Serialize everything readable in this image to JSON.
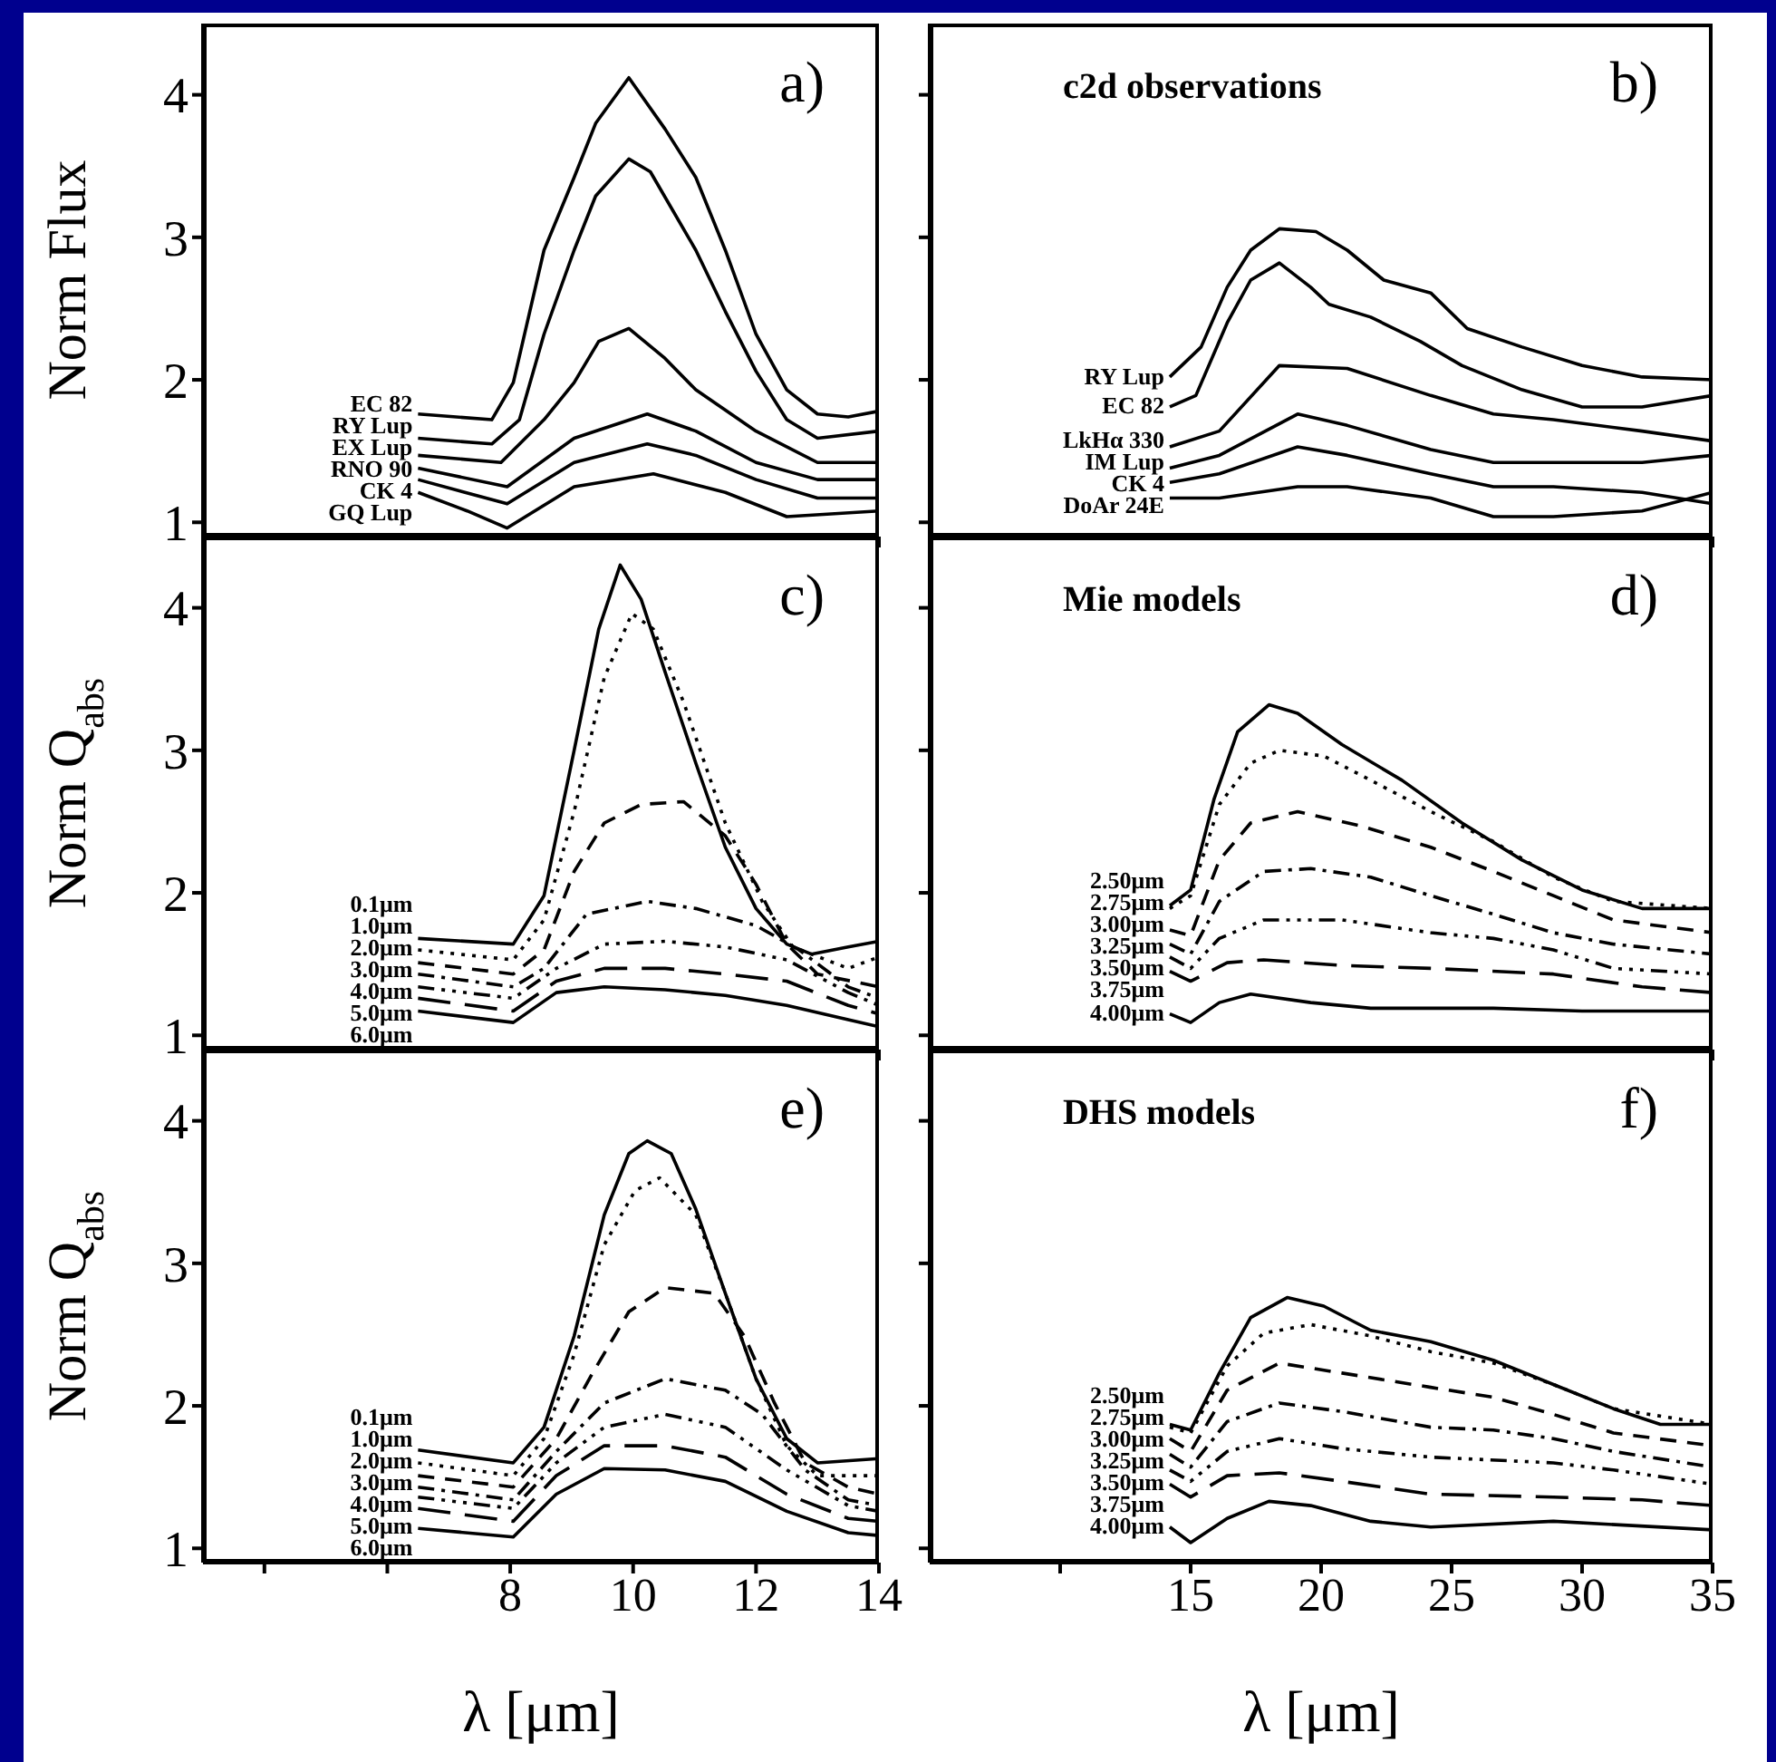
{
  "chart_data": [
    {
      "type": "line",
      "ylabel": "Norm Flux",
      "annotations": [
        "a)"
      ],
      "xlim": [
        3,
        14
      ],
      "xticks": [
        {
          "value": 4,
          "label": null
        },
        {
          "value": 6,
          "label": null
        },
        8,
        10,
        12,
        14
      ],
      "ylim": [
        0.9,
        4.5
      ],
      "yticks": [
        1,
        2,
        3,
        4
      ],
      "tick_labels": "y",
      "series": [
        {
          "name": "EC 82",
          "color": "#000000",
          "line_style": "solid",
          "x": [
            6.5,
            7.7,
            8.05,
            8.55,
            9.04,
            9.39,
            9.93,
            10.52,
            11.02,
            11.5,
            12.0,
            12.5,
            13.0,
            13.5,
            14
          ],
          "values": [
            1.76,
            1.72,
            1.98,
            2.91,
            3.42,
            3.8,
            4.12,
            3.76,
            3.42,
            2.91,
            2.32,
            1.93,
            1.76,
            1.74,
            1.78
          ]
        },
        {
          "name": "RY Lup",
          "color": "#000000",
          "line_style": "solid",
          "x": [
            6.5,
            7.7,
            8.15,
            8.55,
            9.04,
            9.39,
            9.93,
            10.28,
            11.02,
            11.5,
            12.0,
            12.5,
            13,
            14
          ],
          "values": [
            1.59,
            1.55,
            1.72,
            2.32,
            2.91,
            3.29,
            3.55,
            3.46,
            2.91,
            2.48,
            2.06,
            1.72,
            1.59,
            1.64
          ]
        },
        {
          "name": "EX Lup",
          "color": "#000000",
          "line_style": "solid",
          "x": [
            6.5,
            7.85,
            8.55,
            9.04,
            9.44,
            9.93,
            10.52,
            11.02,
            12,
            13,
            14
          ],
          "values": [
            1.47,
            1.42,
            1.72,
            1.98,
            2.27,
            2.36,
            2.15,
            1.93,
            1.64,
            1.42,
            1.42
          ]
        },
        {
          "name": "RNO 90",
          "color": "#000000",
          "line_style": "solid",
          "x": [
            6.5,
            7.95,
            9.04,
            10.23,
            11.02,
            12,
            13,
            14
          ],
          "values": [
            1.38,
            1.25,
            1.59,
            1.76,
            1.64,
            1.42,
            1.3,
            1.3
          ]
        },
        {
          "name": "CK 4",
          "color": "#000000",
          "line_style": "solid",
          "x": [
            6.5,
            7.95,
            9.04,
            10.23,
            11.02,
            12,
            13,
            14
          ],
          "values": [
            1.3,
            1.13,
            1.42,
            1.55,
            1.47,
            1.3,
            1.17,
            1.17
          ]
        },
        {
          "name": "GQ Lup",
          "color": "#000000",
          "line_style": "solid",
          "x": [
            6.5,
            7.3,
            7.95,
            9.04,
            10.33,
            11.5,
            12.5,
            14
          ],
          "values": [
            1.21,
            1.08,
            0.96,
            1.25,
            1.34,
            1.21,
            1.04,
            1.08
          ]
        }
      ]
    },
    {
      "type": "line",
      "annotations": [
        "c2d observations",
        "b)"
      ],
      "xlim": [
        5,
        35
      ],
      "xticks": [
        {
          "value": 10,
          "label": null
        },
        15,
        20,
        25,
        30,
        35
      ],
      "ylim": [
        0.9,
        4.5
      ],
      "yticks": [
        1,
        2,
        3,
        4
      ],
      "tick_labels": false,
      "series": [
        {
          "name": "RY Lup",
          "color": "#000000",
          "line_style": "solid",
          "x": [
            14.2,
            15.4,
            16.4,
            17.3,
            18.4,
            19.8,
            21.0,
            22.4,
            24.2,
            25.6,
            27.7,
            30.0,
            32.3,
            35
          ],
          "values": [
            2.02,
            2.23,
            2.65,
            2.91,
            3.06,
            3.04,
            2.91,
            2.7,
            2.61,
            2.36,
            2.23,
            2.1,
            2.02,
            2.0
          ]
        },
        {
          "name": "EC 82",
          "color": "#000000",
          "line_style": "solid",
          "x": [
            14.2,
            15.2,
            16.4,
            17.3,
            18.4,
            19.6,
            20.3,
            21.9,
            23.8,
            25.4,
            27.7,
            30.0,
            32.3,
            35
          ],
          "values": [
            1.81,
            1.89,
            2.4,
            2.7,
            2.82,
            2.65,
            2.53,
            2.44,
            2.27,
            2.1,
            1.93,
            1.81,
            1.81,
            1.89
          ]
        },
        {
          "name": "LkHα 330",
          "color": "#000000",
          "line_style": "solid",
          "x": [
            14.2,
            16.1,
            18.4,
            21.0,
            24.2,
            26.6,
            28.9,
            32.3,
            35
          ],
          "values": [
            1.53,
            1.64,
            2.1,
            2.08,
            1.89,
            1.76,
            1.72,
            1.64,
            1.57
          ]
        },
        {
          "name": "IM Lup",
          "color": "#000000",
          "line_style": "solid",
          "x": [
            14.2,
            16.1,
            19.1,
            21.0,
            24.2,
            26.6,
            28.9,
            32.3,
            35
          ],
          "values": [
            1.38,
            1.47,
            1.76,
            1.68,
            1.51,
            1.42,
            1.42,
            1.42,
            1.47
          ]
        },
        {
          "name": "CK 4",
          "color": "#000000",
          "line_style": "solid",
          "x": [
            14.2,
            16.1,
            19.1,
            21.0,
            24.2,
            26.6,
            28.9,
            32.3,
            35
          ],
          "values": [
            1.28,
            1.34,
            1.53,
            1.47,
            1.34,
            1.25,
            1.25,
            1.21,
            1.13
          ]
        },
        {
          "name": "DoAr 24E",
          "color": "#000000",
          "line_style": "solid",
          "x": [
            14.2,
            16.1,
            19.1,
            21.0,
            24.2,
            26.6,
            28.9,
            32.3,
            35
          ],
          "values": [
            1.17,
            1.17,
            1.25,
            1.25,
            1.17,
            1.04,
            1.04,
            1.08,
            1.21
          ]
        }
      ]
    },
    {
      "type": "line",
      "ylabel": "Norm Q$_{abs}$",
      "annotations": [
        "c)"
      ],
      "xlim": [
        3,
        14
      ],
      "xticks": [
        {
          "value": 4,
          "label": null
        },
        {
          "value": 6,
          "label": null
        },
        8,
        10,
        12,
        14
      ],
      "ylim": [
        0.9,
        4.5
      ],
      "yticks": [
        1,
        2,
        3,
        4
      ],
      "tick_labels": "y",
      "series": [
        {
          "name": "0.1μm",
          "color": "#000000",
          "line_style": "solid",
          "x": [
            6.5,
            8.05,
            8.55,
            9.04,
            9.44,
            9.79,
            10.13,
            10.52,
            11.02,
            11.5,
            12,
            12.5,
            12.9,
            13.5,
            14
          ],
          "values": [
            1.68,
            1.64,
            1.98,
            3.0,
            3.85,
            4.3,
            4.06,
            3.55,
            2.91,
            2.32,
            1.89,
            1.64,
            1.57,
            1.62,
            1.66
          ]
        },
        {
          "name": "1.0μm",
          "color": "#000000",
          "line_style": "dotted",
          "x": [
            6.5,
            8.05,
            8.55,
            9.04,
            9.53,
            9.98,
            10.33,
            10.82,
            11.5,
            12.1,
            12.6,
            13.5,
            14
          ],
          "values": [
            1.6,
            1.53,
            1.81,
            2.57,
            3.51,
            3.96,
            3.85,
            3.34,
            2.49,
            1.94,
            1.62,
            1.47,
            1.55
          ]
        },
        {
          "name": "2.0μm",
          "color": "#000000",
          "line_style": "dashed",
          "x": [
            6.5,
            8.05,
            8.55,
            9.04,
            9.53,
            10.13,
            10.82,
            11.5,
            12,
            12.5,
            13,
            14
          ],
          "values": [
            1.51,
            1.43,
            1.6,
            2.15,
            2.49,
            2.62,
            2.64,
            2.4,
            2.06,
            1.64,
            1.43,
            1.34
          ]
        },
        {
          "name": "3.0μm",
          "color": "#000000",
          "line_style": "dashdot",
          "x": [
            6.5,
            8.05,
            8.55,
            9.24,
            10.23,
            11.02,
            12,
            12.7,
            13.5,
            14
          ],
          "values": [
            1.43,
            1.34,
            1.47,
            1.85,
            1.94,
            1.89,
            1.77,
            1.6,
            1.34,
            1.26
          ]
        },
        {
          "name": "4.0μm",
          "color": "#000000",
          "line_style": "dashdotdot",
          "x": [
            6.5,
            8.05,
            8.75,
            9.53,
            10.52,
            11.5,
            12.5,
            13.5,
            14
          ],
          "values": [
            1.34,
            1.26,
            1.47,
            1.64,
            1.66,
            1.62,
            1.53,
            1.3,
            1.21
          ]
        },
        {
          "name": "5.0μm",
          "color": "#000000",
          "line_style": "longdash",
          "x": [
            6.5,
            8.05,
            8.75,
            9.53,
            10.52,
            11.5,
            12.5,
            13.5,
            14
          ],
          "values": [
            1.26,
            1.17,
            1.38,
            1.47,
            1.47,
            1.43,
            1.38,
            1.21,
            1.15
          ]
        },
        {
          "name": "6.0μm",
          "color": "#000000",
          "line_style": "solid",
          "x": [
            6.5,
            8.05,
            8.75,
            9.53,
            10.52,
            11.5,
            12.5,
            13.5,
            14
          ],
          "values": [
            1.17,
            1.09,
            1.3,
            1.34,
            1.32,
            1.28,
            1.21,
            1.11,
            1.06
          ]
        }
      ]
    },
    {
      "type": "line",
      "annotations": [
        "Mie models",
        "d)"
      ],
      "xlim": [
        5,
        35
      ],
      "xticks": [
        {
          "value": 10,
          "label": null
        },
        15,
        20,
        25,
        30,
        35
      ],
      "ylim": [
        0.9,
        4.5
      ],
      "yticks": [
        1,
        2,
        3,
        4
      ],
      "tick_labels": false,
      "series": [
        {
          "name": "2.50μm",
          "color": "#000000",
          "line_style": "solid",
          "x": [
            14.2,
            15,
            15.9,
            16.8,
            18.0,
            19.1,
            20.8,
            23.1,
            25.4,
            27.7,
            30.0,
            32.3,
            35
          ],
          "values": [
            1.91,
            2.02,
            2.66,
            3.13,
            3.32,
            3.26,
            3.04,
            2.79,
            2.49,
            2.23,
            2.02,
            1.89,
            1.89
          ]
        },
        {
          "name": "2.75μm",
          "color": "#000000",
          "line_style": "dotted",
          "x": [
            14.2,
            15,
            16.1,
            17.3,
            18.4,
            20.1,
            21.9,
            24.2,
            26.6,
            28.9,
            31.2,
            35
          ],
          "values": [
            1.89,
            1.98,
            2.62,
            2.91,
            3.0,
            2.96,
            2.79,
            2.57,
            2.36,
            2.11,
            1.94,
            1.89
          ]
        },
        {
          "name": "3.00μm",
          "color": "#000000",
          "line_style": "dashed",
          "x": [
            14.2,
            15,
            16.1,
            17.3,
            19.1,
            21.5,
            24.2,
            26.6,
            28.9,
            31.2,
            35
          ],
          "values": [
            1.74,
            1.7,
            2.23,
            2.49,
            2.57,
            2.47,
            2.32,
            2.15,
            1.98,
            1.81,
            1.72
          ]
        },
        {
          "name": "3.25μm",
          "color": "#000000",
          "line_style": "dashdot",
          "x": [
            14.2,
            15,
            16.1,
            17.8,
            19.6,
            21.9,
            24.2,
            26.6,
            28.9,
            31.2,
            35
          ],
          "values": [
            1.64,
            1.57,
            1.94,
            2.15,
            2.17,
            2.11,
            1.98,
            1.85,
            1.72,
            1.64,
            1.57
          ]
        },
        {
          "name": "3.50μm",
          "color": "#000000",
          "line_style": "dashdotdot",
          "x": [
            14.2,
            15,
            16.1,
            17.8,
            20.8,
            24.2,
            26.6,
            28.9,
            31.2,
            35
          ],
          "values": [
            1.55,
            1.47,
            1.68,
            1.81,
            1.81,
            1.72,
            1.68,
            1.6,
            1.47,
            1.43
          ]
        },
        {
          "name": "3.75μm",
          "color": "#000000",
          "line_style": "longdash",
          "x": [
            14.2,
            15,
            16.4,
            17.8,
            20.8,
            24.2,
            28.9,
            32.3,
            35
          ],
          "values": [
            1.45,
            1.38,
            1.51,
            1.53,
            1.49,
            1.47,
            1.43,
            1.34,
            1.3
          ]
        },
        {
          "name": "4.00μm",
          "color": "#000000",
          "line_style": "solid",
          "x": [
            14.2,
            15,
            16.1,
            17.3,
            19.6,
            21.9,
            26.6,
            30,
            35
          ],
          "values": [
            1.15,
            1.09,
            1.23,
            1.29,
            1.23,
            1.19,
            1.19,
            1.17,
            1.17
          ]
        }
      ]
    },
    {
      "type": "line",
      "ylabel": "Norm Q$_{abs}$",
      "xlabel": "λ [μm]",
      "annotations": [
        "e)"
      ],
      "xlim": [
        3,
        14
      ],
      "xticks": [
        {
          "value": 4,
          "label": null
        },
        {
          "value": 6,
          "label": null
        },
        8,
        10,
        12,
        14
      ],
      "ylim": [
        0.9,
        4.5
      ],
      "yticks": [
        1,
        2,
        3,
        4
      ],
      "series": [
        {
          "name": "0.1μm",
          "color": "#000000",
          "line_style": "solid",
          "x": [
            6.5,
            8.05,
            8.55,
            9.04,
            9.53,
            9.93,
            10.23,
            10.62,
            11.02,
            11.5,
            12,
            12.5,
            13,
            14
          ],
          "values": [
            1.69,
            1.6,
            1.85,
            2.49,
            3.34,
            3.77,
            3.86,
            3.77,
            3.38,
            2.79,
            2.19,
            1.77,
            1.6,
            1.63
          ]
        },
        {
          "name": "1.0μm",
          "color": "#000000",
          "line_style": "dotted",
          "x": [
            6.5,
            8.05,
            8.55,
            9.04,
            9.53,
            10.03,
            10.43,
            11.02,
            11.5,
            12,
            12.5,
            13,
            14
          ],
          "values": [
            1.6,
            1.51,
            1.77,
            2.36,
            3.13,
            3.51,
            3.6,
            3.34,
            2.79,
            2.19,
            1.72,
            1.51,
            1.51
          ]
        },
        {
          "name": "2.0μm",
          "color": "#000000",
          "line_style": "dashed",
          "x": [
            6.5,
            8.05,
            8.75,
            9.34,
            9.93,
            10.52,
            11.32,
            11.81,
            12.3,
            12.8,
            13.5,
            14
          ],
          "values": [
            1.51,
            1.43,
            1.77,
            2.23,
            2.66,
            2.83,
            2.79,
            2.49,
            2.02,
            1.6,
            1.43,
            1.38
          ]
        },
        {
          "name": "3.0μm",
          "color": "#000000",
          "line_style": "dashdot",
          "x": [
            6.5,
            8.05,
            8.75,
            9.53,
            10.52,
            11.5,
            12.1,
            12.8,
            13.5,
            14
          ],
          "values": [
            1.43,
            1.34,
            1.68,
            2.02,
            2.19,
            2.11,
            1.94,
            1.55,
            1.34,
            1.3
          ]
        },
        {
          "name": "4.0μm",
          "color": "#000000",
          "line_style": "dashdotdot",
          "x": [
            6.5,
            8.05,
            8.75,
            9.53,
            10.52,
            11.5,
            12.5,
            13.5,
            14
          ],
          "values": [
            1.36,
            1.28,
            1.6,
            1.85,
            1.94,
            1.85,
            1.55,
            1.3,
            1.26
          ]
        },
        {
          "name": "5.0μm",
          "color": "#000000",
          "line_style": "longdash",
          "x": [
            6.5,
            8.05,
            8.75,
            9.53,
            10.52,
            11.5,
            12.5,
            13.5,
            14
          ],
          "values": [
            1.28,
            1.19,
            1.51,
            1.72,
            1.72,
            1.64,
            1.38,
            1.21,
            1.19
          ]
        },
        {
          "name": "6.0μm",
          "color": "#000000",
          "line_style": "solid",
          "x": [
            6.5,
            8.05,
            8.75,
            9.53,
            10.52,
            11.5,
            12.5,
            13.5,
            14
          ],
          "values": [
            1.14,
            1.08,
            1.38,
            1.56,
            1.55,
            1.47,
            1.26,
            1.11,
            1.09
          ]
        }
      ]
    },
    {
      "type": "line",
      "xlabel": "λ [μm]",
      "annotations": [
        "DHS models",
        "f)"
      ],
      "xlim": [
        5,
        35
      ],
      "xticks": [
        {
          "value": 10,
          "label": null
        },
        15,
        20,
        25,
        30,
        35
      ],
      "ylim": [
        0.9,
        4.5
      ],
      "yticks": [
        1,
        2,
        3,
        4
      ],
      "tick_labels": "x",
      "series": [
        {
          "name": "2.50μm",
          "color": "#000000",
          "line_style": "solid",
          "x": [
            14.2,
            15,
            16.1,
            17.3,
            18.7,
            20.1,
            21.9,
            24.2,
            26.6,
            28.9,
            31.2,
            33.0,
            35
          ],
          "values": [
            1.87,
            1.83,
            2.23,
            2.62,
            2.76,
            2.7,
            2.53,
            2.45,
            2.32,
            2.15,
            1.98,
            1.87,
            1.87
          ]
        },
        {
          "name": "2.75μm",
          "color": "#000000",
          "line_style": "dotted",
          "x": [
            14.2,
            15,
            16.4,
            17.8,
            19.6,
            21.9,
            24.2,
            26.6,
            28.9,
            31.2,
            35
          ],
          "values": [
            1.85,
            1.81,
            2.28,
            2.51,
            2.57,
            2.49,
            2.38,
            2.3,
            2.15,
            1.98,
            1.87
          ]
        },
        {
          "name": "3.00μm",
          "color": "#000000",
          "line_style": "dashed",
          "x": [
            14.2,
            15,
            16.4,
            18.4,
            20.8,
            24.2,
            26.6,
            28.9,
            31.2,
            35
          ],
          "values": [
            1.77,
            1.68,
            2.11,
            2.3,
            2.23,
            2.13,
            2.06,
            1.94,
            1.81,
            1.72
          ]
        },
        {
          "name": "3.25μm",
          "color": "#000000",
          "line_style": "dashdot",
          "x": [
            14.2,
            15,
            16.4,
            18.4,
            20.8,
            24.2,
            26.6,
            28.9,
            31.2,
            35
          ],
          "values": [
            1.66,
            1.57,
            1.89,
            2.02,
            1.96,
            1.85,
            1.83,
            1.77,
            1.68,
            1.57
          ]
        },
        {
          "name": "3.50μm",
          "color": "#000000",
          "line_style": "dashdotdot",
          "x": [
            14.2,
            15,
            16.4,
            18.4,
            20.8,
            24.2,
            28.9,
            31.2,
            35
          ],
          "values": [
            1.55,
            1.47,
            1.68,
            1.77,
            1.7,
            1.64,
            1.6,
            1.55,
            1.45
          ]
        },
        {
          "name": "3.75μm",
          "color": "#000000",
          "line_style": "longdash",
          "x": [
            14.2,
            15,
            16.4,
            18.4,
            20.8,
            24.2,
            28.9,
            32.3,
            35
          ],
          "values": [
            1.45,
            1.36,
            1.51,
            1.53,
            1.47,
            1.38,
            1.36,
            1.34,
            1.3
          ]
        },
        {
          "name": "4.00μm",
          "color": "#000000",
          "line_style": "solid",
          "x": [
            14.2,
            15,
            16.4,
            18.0,
            19.6,
            21.9,
            24.2,
            28.9,
            35
          ],
          "values": [
            1.15,
            1.04,
            1.21,
            1.33,
            1.3,
            1.19,
            1.15,
            1.19,
            1.13
          ]
        }
      ]
    }
  ]
}
